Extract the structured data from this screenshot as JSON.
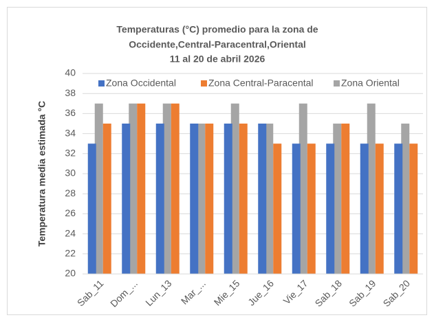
{
  "chart_data": {
    "type": "bar",
    "title": [
      "Temperaturas (°C) promedio para la zona de",
      "Occidente,Central-Paracentral,Oriental",
      "11 al 20 de abril 2026"
    ],
    "y_label": "Temperatura media  estimada  °C",
    "categories": [
      "Sab_11",
      "Dom_...",
      "Lun_13",
      "Mar_...",
      "Mie_15",
      "Jue_16",
      "Vie_17",
      "Sab_18",
      "Sab_19",
      "Sab_20"
    ],
    "series": [
      {
        "name": "Zona Occidental",
        "color": "#4472c4",
        "values": [
          33,
          35,
          35,
          35,
          35,
          35,
          33,
          33,
          33,
          33
        ]
      },
      {
        "name": "Zona Central-Paracental",
        "color": "#ed7d31",
        "values": [
          35,
          37,
          37,
          35,
          35,
          33,
          33,
          35,
          33,
          33
        ]
      },
      {
        "name": "Zona Oriental",
        "color": "#a5a5a5",
        "values": [
          37,
          37,
          37,
          35,
          37,
          35,
          37,
          35,
          37,
          35
        ]
      }
    ],
    "ylim": [
      20,
      40
    ],
    "yticks": [
      20,
      22,
      24,
      26,
      28,
      30,
      32,
      34,
      36,
      38,
      40
    ],
    "grid": true,
    "legend": "top"
  }
}
